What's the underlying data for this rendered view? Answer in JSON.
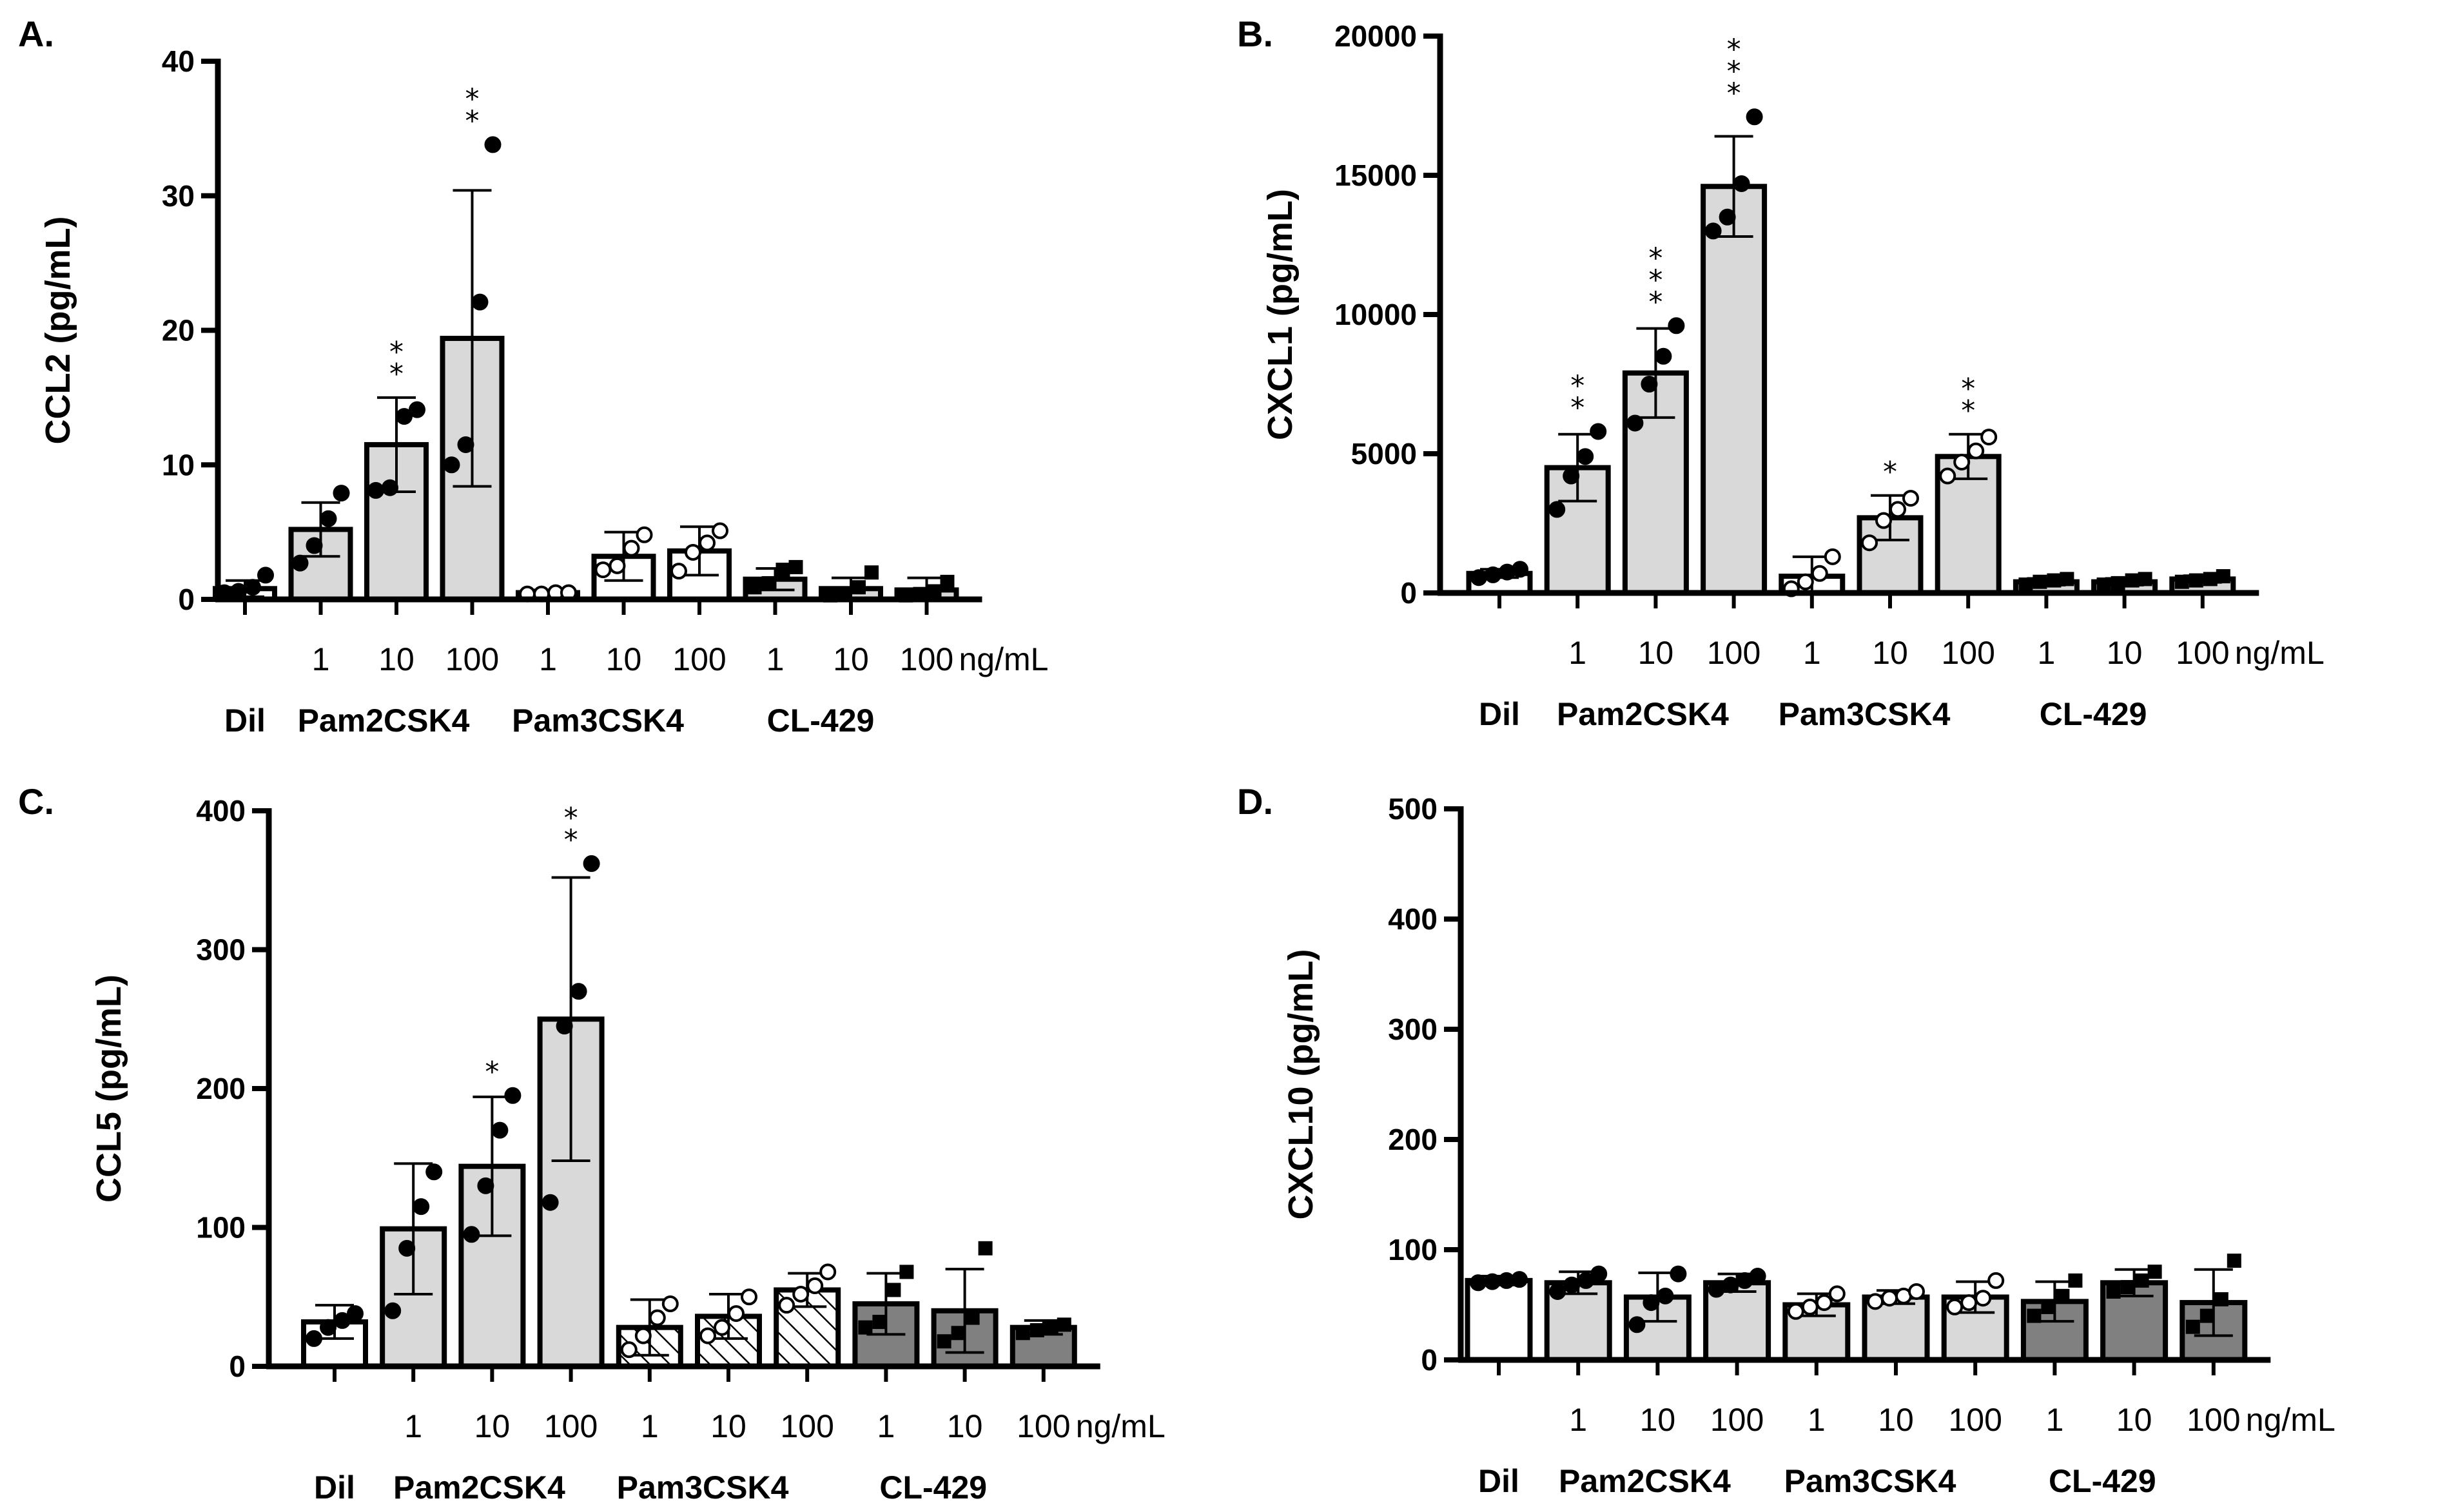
{
  "chart_data": [
    {
      "panel": "A.",
      "type": "bar",
      "ylabel": "CCL2 (pg/mL)",
      "ylim": [
        0,
        40
      ],
      "yticks": [
        0,
        10,
        20,
        30,
        40
      ],
      "unit_label": "ng/mL",
      "categories": [
        "",
        "1",
        "10",
        "100",
        "1",
        "10",
        "100",
        "1",
        "10",
        "100"
      ],
      "groups": [
        "Dil",
        "Pam2CSK4",
        "Pam3CSK4",
        "CL-429"
      ],
      "values": [
        0.8,
        5.2,
        11.5,
        19.4,
        0.5,
        3.2,
        3.6,
        1.5,
        0.8,
        0.7
      ],
      "errors": [
        0.6,
        2.0,
        3.5,
        11.0,
        0.2,
        1.8,
        1.8,
        0.8,
        0.8,
        0.9
      ],
      "points": [
        [
          0.5,
          0.6,
          0.9,
          1.8
        ],
        [
          2.7,
          4.0,
          6.0,
          7.9
        ],
        [
          8.1,
          8.3,
          13.6,
          14.1
        ],
        [
          10.0,
          11.5,
          22.1,
          33.8
        ],
        [
          0.4,
          0.4,
          0.5,
          0.5
        ],
        [
          2.2,
          2.5,
          3.8,
          4.8
        ],
        [
          2.1,
          3.5,
          4.2,
          5.1
        ],
        [
          0.9,
          1.2,
          2.2,
          2.4
        ],
        [
          0.3,
          0.4,
          0.9,
          2.0
        ],
        [
          0.3,
          0.4,
          0.6,
          1.3
        ]
      ],
      "significance": [
        "",
        "",
        "**",
        "**",
        "",
        "",
        "",
        "",
        "",
        ""
      ]
    },
    {
      "panel": "B.",
      "type": "bar",
      "ylabel": "CXCL1 (pg/mL)",
      "ylim": [
        0,
        20000
      ],
      "yticks": [
        0,
        5000,
        10000,
        15000,
        20000
      ],
      "unit_label": "ng/mL",
      "categories": [
        "",
        "1",
        "10",
        "100",
        "1",
        "10",
        "100",
        "1",
        "10",
        "100"
      ],
      "groups": [
        "Dil",
        "Pam2CSK4",
        "Pam3CSK4",
        "CL-429"
      ],
      "values": [
        700,
        4500,
        7900,
        14600,
        600,
        2700,
        4900,
        400,
        400,
        500
      ],
      "errors": [
        150,
        1200,
        1600,
        1800,
        700,
        800,
        800,
        120,
        120,
        120
      ],
      "points": [
        [
          550,
          650,
          750,
          850
        ],
        [
          3000,
          4200,
          4900,
          5800
        ],
        [
          6100,
          7500,
          8500,
          9600
        ],
        [
          13000,
          13500,
          14700,
          17100
        ],
        [
          150,
          400,
          700,
          1300
        ],
        [
          1800,
          2600,
          3000,
          3400
        ],
        [
          4200,
          4700,
          5100,
          5600
        ],
        [
          300,
          400,
          450,
          500
        ],
        [
          300,
          350,
          450,
          500
        ],
        [
          400,
          450,
          500,
          600
        ]
      ],
      "significance": [
        "",
        "**",
        "***",
        "***",
        "",
        "*",
        "**",
        "",
        "",
        ""
      ]
    },
    {
      "panel": "C.",
      "type": "bar",
      "ylabel": "CCL5 (pg/mL)",
      "ylim": [
        0,
        400
      ],
      "yticks": [
        0,
        100,
        200,
        300,
        400
      ],
      "unit_label": "ng/mL",
      "categories": [
        "",
        "1",
        "10",
        "100",
        "1",
        "10",
        "100",
        "1",
        "10",
        "100"
      ],
      "groups": [
        "Dil",
        "Pam2CSK4",
        "Pam3CSK4",
        "CL-429"
      ],
      "values": [
        32,
        99,
        144,
        250,
        28,
        36,
        55,
        45,
        40,
        28
      ],
      "errors": [
        12,
        47,
        50,
        102,
        20,
        16,
        12,
        22,
        30,
        5
      ],
      "points": [
        [
          20,
          28,
          33,
          38
        ],
        [
          40,
          85,
          115,
          140
        ],
        [
          95,
          130,
          170,
          195
        ],
        [
          118,
          245,
          270,
          362
        ],
        [
          12,
          22,
          35,
          45
        ],
        [
          22,
          28,
          38,
          50
        ],
        [
          44,
          52,
          58,
          68
        ],
        [
          28,
          32,
          55,
          68
        ],
        [
          18,
          24,
          35,
          85
        ],
        [
          24,
          26,
          28,
          30
        ]
      ],
      "significance": [
        "",
        "",
        "*",
        "**",
        "",
        "",
        "",
        "",
        "",
        ""
      ]
    },
    {
      "panel": "D.",
      "type": "bar",
      "ylabel": "CXCL10 (pg/mL)",
      "ylim": [
        0,
        500
      ],
      "yticks": [
        0,
        100,
        200,
        300,
        400,
        500
      ],
      "unit_label": "ng/mL",
      "categories": [
        "",
        "1",
        "10",
        "100",
        "1",
        "10",
        "100",
        "1",
        "10",
        "100"
      ],
      "groups": [
        "Dil",
        "Pam2CSK4",
        "Pam3CSK4",
        "CL-429"
      ],
      "values": [
        72,
        70,
        57,
        70,
        50,
        57,
        57,
        53,
        70,
        52
      ],
      "errors": [
        4,
        10,
        22,
        8,
        10,
        6,
        14,
        18,
        12,
        30
      ],
      "points": [
        [
          70,
          71,
          72,
          73
        ],
        [
          62,
          68,
          72,
          78
        ],
        [
          32,
          52,
          58,
          78
        ],
        [
          64,
          68,
          72,
          76
        ],
        [
          44,
          48,
          52,
          60
        ],
        [
          53,
          56,
          58,
          62
        ],
        [
          48,
          52,
          56,
          72
        ],
        [
          40,
          48,
          58,
          72
        ],
        [
          62,
          66,
          72,
          80
        ],
        [
          30,
          40,
          55,
          90
        ]
      ],
      "significance": [
        "",
        "",
        "",
        "",
        "",
        "",
        "",
        "",
        "",
        ""
      ]
    }
  ]
}
